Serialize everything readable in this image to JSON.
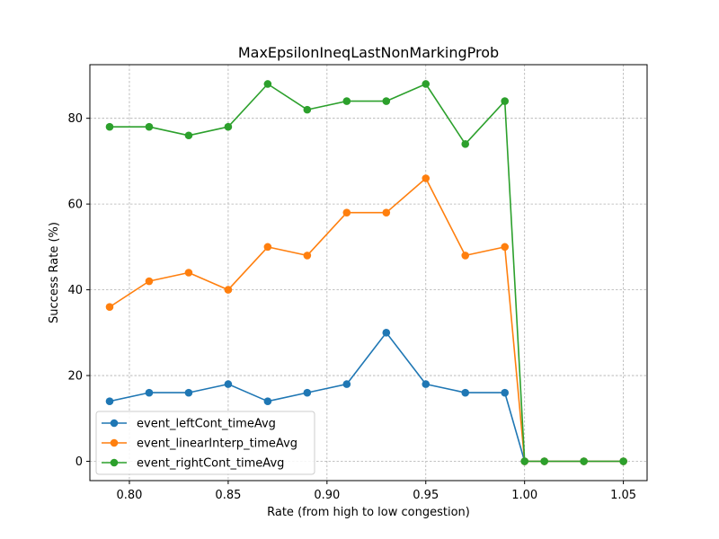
{
  "chart_data": {
    "type": "line",
    "title": "MaxEpsilonIneqLastNonMarkingProb",
    "xlabel": "Rate (from high to low congestion)",
    "ylabel": "Success Rate (%)",
    "xlim": [
      0.78,
      1.062
    ],
    "ylim": [
      -4.5,
      92.5
    ],
    "xticks": [
      0.8,
      0.85,
      0.9,
      0.95,
      1.0,
      1.05
    ],
    "xtick_labels": [
      "0.80",
      "0.85",
      "0.90",
      "0.95",
      "1.00",
      "1.05"
    ],
    "yticks": [
      0,
      20,
      40,
      60,
      80
    ],
    "ytick_labels": [
      "0",
      "20",
      "40",
      "60",
      "80"
    ],
    "grid": true,
    "legend_position": "lower-left",
    "x": [
      0.79,
      0.81,
      0.83,
      0.85,
      0.87,
      0.89,
      0.91,
      0.93,
      0.95,
      0.97,
      0.99,
      1.0,
      1.01,
      1.03,
      1.05
    ],
    "series": [
      {
        "name": "event_leftCont_timeAvg",
        "color": "#1f77b4",
        "values": [
          14,
          16,
          16,
          18,
          14,
          16,
          18,
          30,
          18,
          16,
          16,
          0,
          0,
          0,
          0
        ]
      },
      {
        "name": "event_linearInterp_timeAvg",
        "color": "#ff7f0e",
        "values": [
          36,
          42,
          44,
          40,
          50,
          48,
          58,
          58,
          66,
          48,
          50,
          0,
          0,
          0,
          0
        ]
      },
      {
        "name": "event_rightCont_timeAvg",
        "color": "#2ca02c",
        "values": [
          78,
          78,
          76,
          78,
          88,
          82,
          84,
          84,
          88,
          74,
          84,
          0,
          0,
          0,
          0
        ]
      }
    ]
  }
}
